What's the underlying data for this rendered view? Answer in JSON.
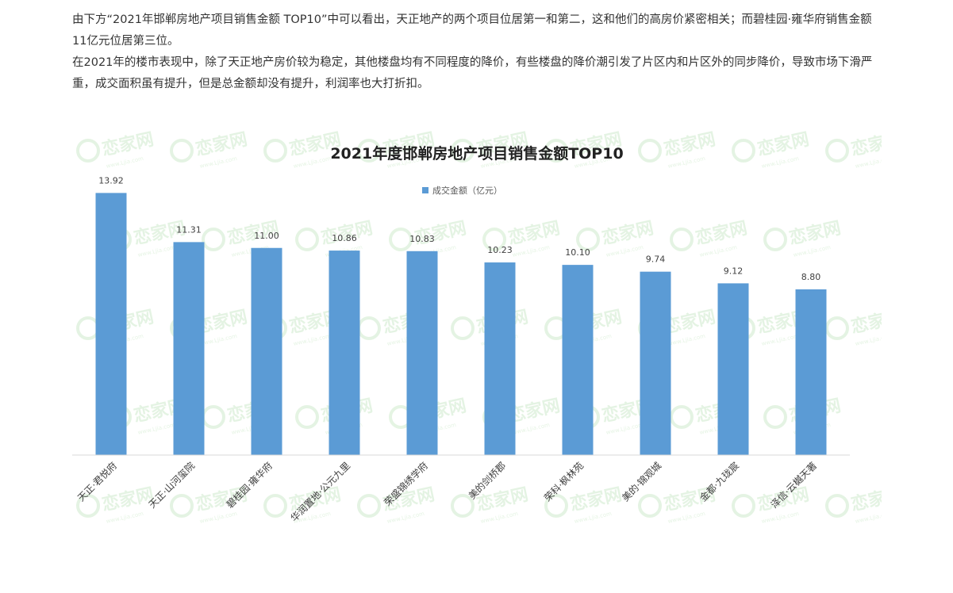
{
  "article": {
    "paragraphs": [
      "由下方“2021年邯郸房地产项目销售金额 TOP10”中可以看出，天正地产的两个项目位居第一和第二，这和他们的高房价紧密相关；而碧桂园·雍华府销售金额11亿元位居第三位。",
      "在2021年的楼市表现中，除了天正地产房价较为稳定，其他楼盘均有不同程度的降价，有些楼盘的降价潮引发了片区内和片区外的同步降价，导致市场下滑严重，成交面积虽有提升，但是总金额却没有提升，利润率也大打折扣。"
    ]
  },
  "watermark": {
    "brand": "恋家网",
    "url": "www.Ljia.com",
    "color": "#b5dfb0"
  },
  "chart_data": {
    "type": "bar",
    "title": "2021年度邯郸房地产项目销售金额TOP10",
    "legend": "成交金额（亿元）",
    "legend_position": "top-center",
    "categories": [
      "天正·君悦府",
      "天正·山河玺院",
      "碧桂园·雍华府",
      "华润置地·公元九里",
      "荣盛锦绣学府",
      "美的剑桥郡",
      "荣科·枫林苑",
      "美的·锦观城",
      "金都·九珑宸",
      "泽信·云樾天著"
    ],
    "series": [
      {
        "name": "成交金额（亿元）",
        "values": [
          13.92,
          11.31,
          11.0,
          10.86,
          10.83,
          10.23,
          10.1,
          9.74,
          9.12,
          8.8
        ],
        "color": "#5b9bd5"
      }
    ],
    "ylim": [
      0,
      16
    ],
    "grid": false,
    "data_labels": true,
    "axis_color": "#d9d9d9"
  }
}
